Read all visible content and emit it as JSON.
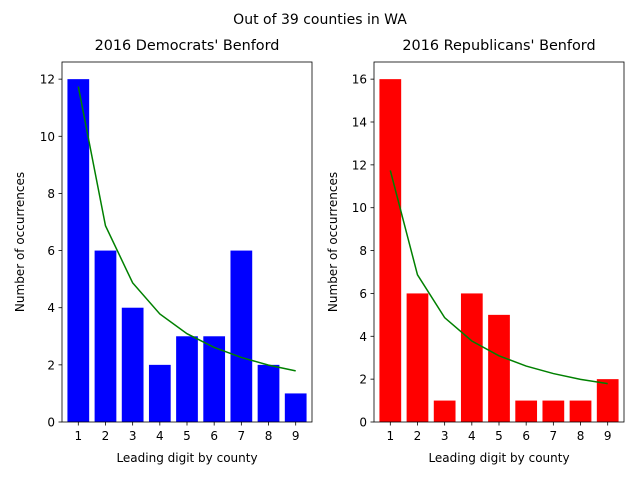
{
  "suptitle": "Out of 39 counties in WA",
  "chart_data": [
    {
      "type": "bar",
      "title": "2016 Democrats' Benford",
      "xlabel": "Leading digit by county",
      "ylabel": "Number of occurrences",
      "categories": [
        "1",
        "2",
        "3",
        "4",
        "5",
        "6",
        "7",
        "8",
        "9"
      ],
      "yticks": [
        "0",
        "2",
        "4",
        "6",
        "8",
        "10",
        "12"
      ],
      "ylim": [
        0,
        12.6
      ],
      "bar_color": "#0000ff",
      "line_color": "#008000",
      "series": [
        {
          "type": "bar",
          "values": [
            12,
            6,
            4,
            2,
            3,
            3,
            6,
            2,
            1
          ]
        },
        {
          "type": "line",
          "values": [
            11.74,
            6.87,
            4.87,
            3.78,
            3.09,
            2.61,
            2.26,
            1.99,
            1.79
          ]
        }
      ],
      "grid": false,
      "legend": "none"
    },
    {
      "type": "bar",
      "title": "2016 Republicans' Benford",
      "xlabel": "Leading digit by county",
      "ylabel": "Number of occurrences",
      "categories": [
        "1",
        "2",
        "3",
        "4",
        "5",
        "6",
        "7",
        "8",
        "9"
      ],
      "yticks": [
        "0",
        "2",
        "4",
        "6",
        "8",
        "10",
        "12",
        "14",
        "16"
      ],
      "ylim": [
        0,
        16.8
      ],
      "bar_color": "#ff0000",
      "line_color": "#008000",
      "series": [
        {
          "type": "bar",
          "values": [
            16,
            6,
            1,
            6,
            5,
            1,
            1,
            1,
            2
          ]
        },
        {
          "type": "line",
          "values": [
            11.74,
            6.87,
            4.87,
            3.78,
            3.09,
            2.61,
            2.26,
            1.99,
            1.79
          ]
        }
      ],
      "grid": false,
      "legend": "none"
    }
  ]
}
